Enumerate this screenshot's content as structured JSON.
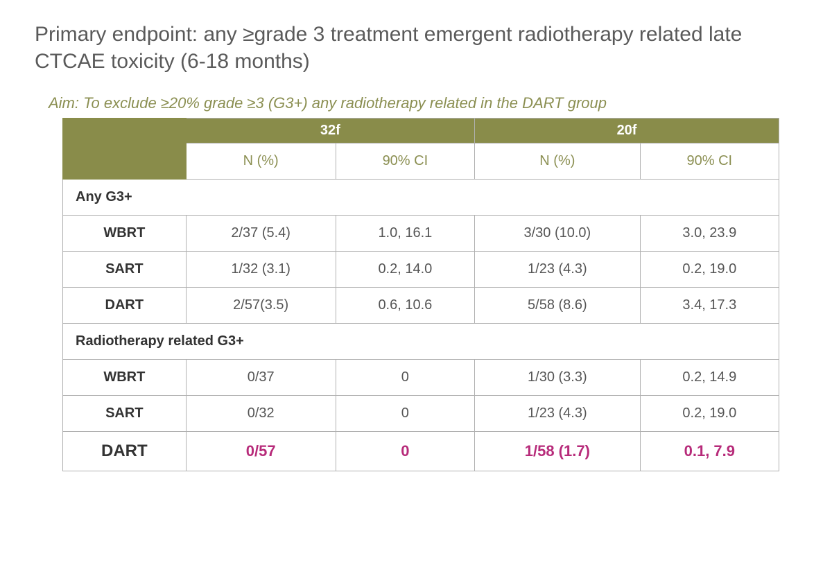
{
  "title": "Primary endpoint: any ≥grade 3 treatment emergent radiotherapy related late CTCAE toxicity (6-18 months)",
  "aim": "Aim: To exclude ≥20% grade ≥3 (G3+) any radiotherapy related in the DART group",
  "header": {
    "group1": "32f",
    "group2": "20f",
    "sub_n": "N (%)",
    "sub_ci": "90% CI"
  },
  "sections": [
    {
      "label": "Any G3+",
      "rows": [
        {
          "label": "WBRT",
          "n1": "2/37 (5.4)",
          "ci1": "1.0, 16.1",
          "n2": "3/30 (10.0)",
          "ci2": "3.0, 23.9",
          "highlight": false
        },
        {
          "label": "SART",
          "n1": "1/32 (3.1)",
          "ci1": "0.2, 14.0",
          "n2": "1/23 (4.3)",
          "ci2": "0.2, 19.0",
          "highlight": false
        },
        {
          "label": "DART",
          "n1": "2/57(3.5)",
          "ci1": "0.6, 10.6",
          "n2": "5/58 (8.6)",
          "ci2": "3.4, 17.3",
          "highlight": false
        }
      ]
    },
    {
      "label": "Radiotherapy related G3+",
      "rows": [
        {
          "label": "WBRT",
          "n1": "0/37",
          "ci1": "0",
          "n2": "1/30 (3.3)",
          "ci2": "0.2, 14.9",
          "highlight": false
        },
        {
          "label": "SART",
          "n1": "0/32",
          "ci1": "0",
          "n2": "1/23 (4.3)",
          "ci2": "0.2, 19.0",
          "highlight": false
        },
        {
          "label": "DART",
          "n1": "0/57",
          "ci1": "0",
          "n2": "1/58 (1.7)",
          "ci2": "0.1, 7.9",
          "highlight": true
        }
      ]
    }
  ],
  "colors": {
    "olive": "#898c4a",
    "olive_text": "#8b8f52",
    "highlight": "#b72b7a",
    "border": "#b0b0b0"
  }
}
